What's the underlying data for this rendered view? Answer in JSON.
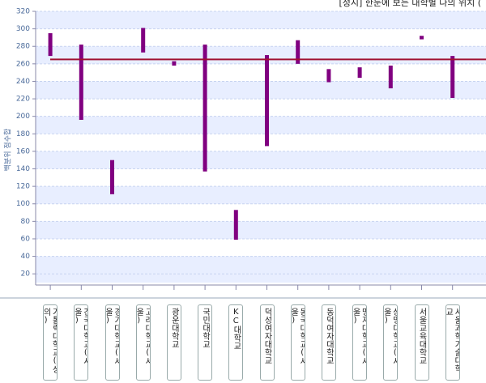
{
  "chart_data": {
    "type": "range-bar",
    "title": "[정시] 한눈에 보는 대학별 나의 위치 (",
    "y_label": "백분위 점수합",
    "categories": [
      "가톨릭대학교(성의)",
      "건국대학교(서울)",
      "경기대학교(서울)",
      "고려대학교(서울)",
      "광운대학교",
      "국민대학교",
      "KC대학교",
      "덕성여자대학교",
      "동국대학교(서울)",
      "동덕여자대학교",
      "명지대학교(서울)",
      "상명대학교(서울)",
      "서울교육대학교",
      "서울과학기술대학교"
    ],
    "high": [
      295,
      282,
      150,
      301,
      263,
      282,
      93,
      270,
      287,
      254,
      256,
      258,
      292,
      269
    ],
    "low": [
      269,
      196,
      111,
      273,
      258,
      137,
      59,
      166,
      260,
      239,
      244,
      232,
      288,
      221
    ],
    "color": "#800080",
    "reference_line": 265,
    "reference_color": "#a01030",
    "ylim": [
      10,
      320
    ],
    "yticks": [
      20,
      40,
      60,
      80,
      100,
      120,
      140,
      160,
      180,
      200,
      220,
      240,
      260,
      280,
      300,
      320
    ],
    "grid": true
  }
}
